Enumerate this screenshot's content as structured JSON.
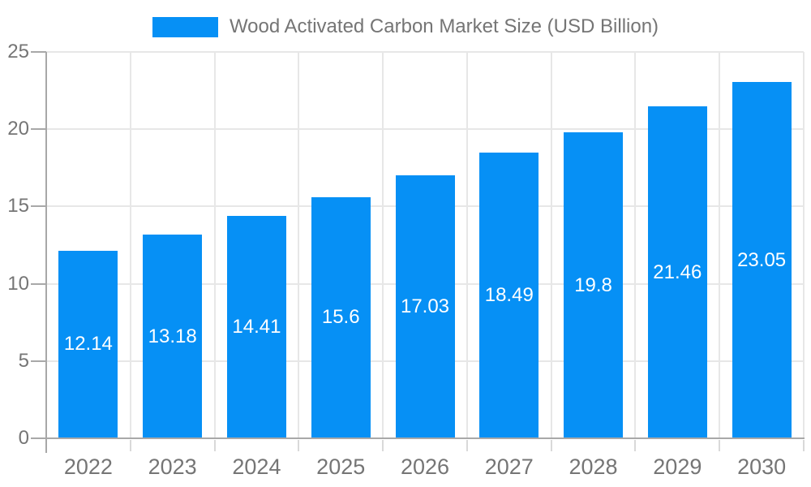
{
  "chart_data": {
    "type": "bar",
    "title": "Wood Activated Carbon Market Size (USD Billion)",
    "legend": {
      "position": "top",
      "marker": "rect",
      "label": "Wood Activated Carbon Market Size (USD Billion)"
    },
    "categories": [
      "2022",
      "2023",
      "2024",
      "2025",
      "2026",
      "2027",
      "2028",
      "2029",
      "2030"
    ],
    "values": [
      12.14,
      13.18,
      14.41,
      15.6,
      17.03,
      18.49,
      19.8,
      21.46,
      23.05
    ],
    "value_labels": [
      "12.14",
      "13.18",
      "14.41",
      "15.6",
      "17.03",
      "18.49",
      "19.8",
      "21.46",
      "23.05"
    ],
    "xlabel": "",
    "ylabel": "",
    "ylim": [
      0,
      25
    ],
    "yticks": [
      0,
      5,
      10,
      15,
      20,
      25
    ],
    "ytick_labels": [
      "0",
      "5",
      "10",
      "15",
      "20",
      "25"
    ],
    "grid": true,
    "colors": {
      "bar": "#0690F5",
      "grid_line": "#e7e7e7",
      "axis_line": "#a8a8a8",
      "tick_line": "#d9d9d9",
      "tick_text": "#757575",
      "value_text": "#ffffff",
      "background": "#ffffff"
    }
  }
}
